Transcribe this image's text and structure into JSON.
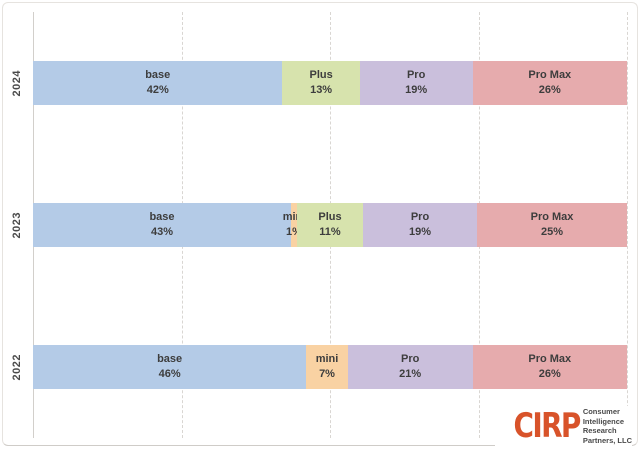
{
  "chart_data": {
    "type": "bar",
    "orientation": "horizontal",
    "stacked": true,
    "unit": "%",
    "title": "",
    "xlabel": "",
    "ylabel": "",
    "xlim": [
      0,
      100
    ],
    "grid": "dashed-vertical",
    "gridlines_percent": [
      25,
      50,
      75,
      100
    ],
    "categories": [
      "2024",
      "2023",
      "2022"
    ],
    "series_colors": {
      "base": "#b4cbe7",
      "mini": "#f9d2a3",
      "Plus": "#d7e3ad",
      "Pro": "#cabfdc",
      "Pro Max": "#e6abad"
    },
    "rows": [
      {
        "year": "2024",
        "segments": [
          {
            "name": "base",
            "value": 42
          },
          {
            "name": "Plus",
            "value": 13
          },
          {
            "name": "Pro",
            "value": 19
          },
          {
            "name": "Pro Max",
            "value": 26
          }
        ]
      },
      {
        "year": "2023",
        "segments": [
          {
            "name": "base",
            "value": 43
          },
          {
            "name": "mini",
            "value": 1
          },
          {
            "name": "Plus",
            "value": 11
          },
          {
            "name": "Pro",
            "value": 19
          },
          {
            "name": "Pro Max",
            "value": 25
          }
        ]
      },
      {
        "year": "2022",
        "segments": [
          {
            "name": "base",
            "value": 46
          },
          {
            "name": "mini",
            "value": 7
          },
          {
            "name": "Pro",
            "value": 21
          },
          {
            "name": "Pro Max",
            "value": 26
          }
        ]
      }
    ]
  },
  "colors": {
    "label_text": "#3d3d3d",
    "year_text": "#4a4a4a",
    "gridline": "#d9d6d2",
    "axis_line": "#d2cfcb",
    "card_border": "#e6e3df",
    "logo_accent": "#d8532a",
    "logo_text": "#4a4a4a"
  },
  "logo": {
    "abbr": "CIRP",
    "lines": [
      "Consumer",
      "Intelligence",
      "Research",
      "Partners, LLC"
    ]
  }
}
